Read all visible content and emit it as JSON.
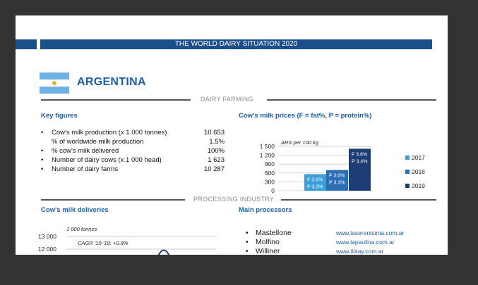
{
  "header": {
    "title": "THE WORLD DAIRY SITUATION 2020"
  },
  "country": {
    "name": "ARGENTINA",
    "flag_colors": {
      "blue": "#6fb1e3",
      "white": "#ffffff",
      "sun": "#e7b521"
    }
  },
  "sections": {
    "dairy_farming": "DAIRY FARMING",
    "processing_industry": "PROCESSING INDUSTRY"
  },
  "key_figures": {
    "heading": "Key figures",
    "items": [
      {
        "label": "Cow's milk production (x 1 000 tonnes)",
        "value": "10 653",
        "bullet": "•"
      },
      {
        "label": "% of worldwide milk production",
        "value": "1.5%",
        "bullet": ""
      },
      {
        "label": "% cow's milk delivered",
        "value": "100%",
        "bullet": "•"
      },
      {
        "label": "Number of dairy cows (x 1 000 head)",
        "value": "1 623",
        "bullet": "•"
      },
      {
        "label": "Number of dairy farms",
        "value": "10 287",
        "bullet": "•"
      }
    ]
  },
  "prices_chart": {
    "heading": "Cow's milk prices (F = fat%, P = protein%)",
    "unit_label": "ARS per 100 kg"
  },
  "deliveries": {
    "heading": "Cow's milk deliveries",
    "unit_label": "1 000 tonnes",
    "cagr_label": "CAGR '10-'19: +0.8%",
    "ticks": [
      "13 000",
      "12 000"
    ]
  },
  "processors": {
    "heading": "Main processors",
    "items": [
      {
        "name": "Mastellone",
        "url": "www.laserenisima.com.ar"
      },
      {
        "name": "Molfino",
        "url": "www.lapaulina.com.ar"
      },
      {
        "name": "Williner",
        "url": "www.ilolay.com.ar"
      }
    ]
  },
  "chart_data": {
    "type": "bar",
    "title": "Cow's milk prices (F = fat%, P = protein%)",
    "ylabel": "ARS per 100 kg",
    "ylim": [
      0,
      1500
    ],
    "yticks": [
      0,
      300,
      600,
      900,
      1200,
      1500
    ],
    "ytick_labels": [
      "0",
      "300",
      "600",
      "900",
      "1 200",
      "1 500"
    ],
    "grid": true,
    "legend": "right",
    "series": [
      {
        "name": "2017",
        "value": 560,
        "color": "#3a9fd8",
        "labels": [
          "F 3.6%",
          "P 3.3%"
        ]
      },
      {
        "name": "2018",
        "value": 700,
        "color": "#2d6fb4",
        "labels": [
          "F 3.6%",
          "P 3.3%"
        ]
      },
      {
        "name": "2019",
        "value": 1420,
        "color": "#1d3e74",
        "labels": [
          "F 3.6%",
          "P 3.4%"
        ]
      }
    ]
  }
}
